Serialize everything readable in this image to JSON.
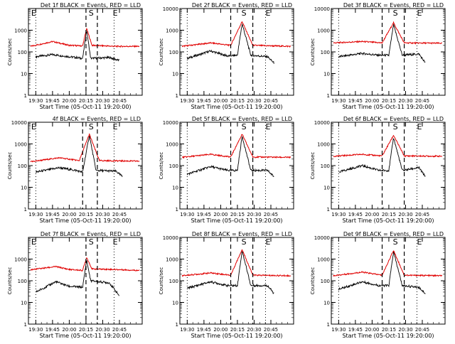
{
  "colors": {
    "events": "#000000",
    "lld": "#e00000",
    "axis": "#000000"
  },
  "chart_data": [
    {
      "type": "line",
      "title": "Det 1f BLACK = Events, RED = LLD",
      "xlabel": "Start Time (05-Oct-11 19:20:00)",
      "ylabel": "Counts/sec",
      "yscale": "log",
      "ylim": [
        1,
        10000
      ],
      "xlim": [
        19.39,
        21.09
      ],
      "xticks": [
        "19:30",
        "19:45",
        "20:00",
        "20:15",
        "20:30",
        "20:45"
      ],
      "yticks": [
        "1",
        "10",
        "100",
        "1000"
      ],
      "markers": [
        {
          "label": "E",
          "x": 19.42
        },
        {
          "label": "S",
          "x": 20.28
        },
        {
          "label": "E",
          "x": 20.64
        }
      ],
      "dashed_lines": [
        20.25,
        20.42
      ],
      "dotted_lines": [
        19.5,
        20.67
      ],
      "series": [
        {
          "name": "Events",
          "values": [
            {
              "x": 19.5,
              "y": 60
            },
            {
              "x": 19.75,
              "y": 75
            },
            {
              "x": 20.0,
              "y": 60
            },
            {
              "x": 20.2,
              "y": 50
            },
            {
              "x": 20.26,
              "y": 1000
            },
            {
              "x": 20.32,
              "y": 50
            },
            {
              "x": 20.6,
              "y": 55
            },
            {
              "x": 20.75,
              "y": 40
            }
          ]
        },
        {
          "name": "LLD",
          "values": [
            {
              "x": 19.42,
              "y": 180
            },
            {
              "x": 19.75,
              "y": 300
            },
            {
              "x": 20.0,
              "y": 200
            },
            {
              "x": 20.2,
              "y": 190
            },
            {
              "x": 20.26,
              "y": 1200
            },
            {
              "x": 20.34,
              "y": 200
            },
            {
              "x": 20.7,
              "y": 180
            },
            {
              "x": 21.05,
              "y": 180
            }
          ]
        }
      ]
    },
    {
      "type": "line",
      "title": "Det 2f BLACK = Events, RED = LLD",
      "xlabel": "Start Time (05-Oct-11 19:20:00)",
      "ylabel": "Counts/sec",
      "yscale": "log",
      "ylim": [
        1,
        10000
      ],
      "xlim": [
        19.39,
        21.09
      ],
      "xticks": [
        "19:30",
        "19:45",
        "20:00",
        "20:15",
        "20:30",
        "20:45"
      ],
      "yticks": [
        "1",
        "10",
        "100",
        "1000",
        "10000"
      ],
      "markers": [
        {
          "label": "S",
          "x": 20.3
        },
        {
          "label": "E",
          "x": 20.66
        }
      ],
      "dashed_lines": [
        20.15,
        20.48
      ],
      "dotted_lines": [
        19.5,
        20.67
      ],
      "series": [
        {
          "name": "Events",
          "values": [
            {
              "x": 19.5,
              "y": 50
            },
            {
              "x": 19.85,
              "y": 110
            },
            {
              "x": 20.1,
              "y": 65
            },
            {
              "x": 20.25,
              "y": 70
            },
            {
              "x": 20.32,
              "y": 2000
            },
            {
              "x": 20.45,
              "y": 70
            },
            {
              "x": 20.7,
              "y": 60
            },
            {
              "x": 20.8,
              "y": 30
            }
          ]
        },
        {
          "name": "LLD",
          "values": [
            {
              "x": 19.42,
              "y": 180
            },
            {
              "x": 19.85,
              "y": 260
            },
            {
              "x": 20.15,
              "y": 200
            },
            {
              "x": 20.32,
              "y": 2500
            },
            {
              "x": 20.48,
              "y": 200
            },
            {
              "x": 21.05,
              "y": 180
            }
          ]
        }
      ]
    },
    {
      "type": "line",
      "title": "Det 3f BLACK = Events, RED = LLD",
      "xlabel": "Start Time (05-Oct-11 19:20:00)",
      "ylabel": "Counts/sec",
      "yscale": "log",
      "ylim": [
        1,
        10000
      ],
      "xlim": [
        19.39,
        21.09
      ],
      "xticks": [
        "19:30",
        "19:45",
        "20:00",
        "20:15",
        "20:30",
        "20:45"
      ],
      "yticks": [
        "1",
        "10",
        "100",
        "1000",
        "10000"
      ],
      "markers": [
        {
          "label": "S",
          "x": 20.3
        },
        {
          "label": "E",
          "x": 20.66
        }
      ],
      "dashed_lines": [
        20.15,
        20.48
      ],
      "dotted_lines": [
        19.5,
        20.67
      ],
      "series": [
        {
          "name": "Events",
          "values": [
            {
              "x": 19.5,
              "y": 60
            },
            {
              "x": 19.85,
              "y": 85
            },
            {
              "x": 20.1,
              "y": 70
            },
            {
              "x": 20.25,
              "y": 70
            },
            {
              "x": 20.32,
              "y": 1800
            },
            {
              "x": 20.45,
              "y": 70
            },
            {
              "x": 20.7,
              "y": 80
            },
            {
              "x": 20.8,
              "y": 30
            }
          ]
        },
        {
          "name": "LLD",
          "values": [
            {
              "x": 19.42,
              "y": 260
            },
            {
              "x": 19.85,
              "y": 300
            },
            {
              "x": 20.15,
              "y": 260
            },
            {
              "x": 20.32,
              "y": 2200
            },
            {
              "x": 20.48,
              "y": 260
            },
            {
              "x": 21.05,
              "y": 250
            }
          ]
        }
      ]
    },
    {
      "type": "line",
      "title": "4f BLACK = Events, RED = LLD",
      "xlabel": "Start Time (05-Oct-11 19:20:00)",
      "ylabel": "Counts/sec",
      "yscale": "log",
      "ylim": [
        1,
        10000
      ],
      "xlim": [
        19.39,
        21.09
      ],
      "xticks": [
        "19:30",
        "19:45",
        "20:00",
        "20:15",
        "20:30",
        "20:45"
      ],
      "yticks": [
        "1",
        "10",
        "100",
        "1000",
        "10000"
      ],
      "markers": [
        {
          "label": "E",
          "x": 19.42
        },
        {
          "label": "S",
          "x": 20.28
        },
        {
          "label": "E",
          "x": 20.64
        }
      ],
      "dashed_lines": [
        20.2,
        20.42
      ],
      "dotted_lines": [
        19.5,
        20.67
      ],
      "series": [
        {
          "name": "Events",
          "values": [
            {
              "x": 19.5,
              "y": 50
            },
            {
              "x": 19.85,
              "y": 80
            },
            {
              "x": 20.1,
              "y": 60
            },
            {
              "x": 20.2,
              "y": 50
            },
            {
              "x": 20.3,
              "y": 2500
            },
            {
              "x": 20.4,
              "y": 60
            },
            {
              "x": 20.7,
              "y": 55
            },
            {
              "x": 20.8,
              "y": 30
            }
          ]
        },
        {
          "name": "LLD",
          "values": [
            {
              "x": 19.42,
              "y": 150
            },
            {
              "x": 19.85,
              "y": 230
            },
            {
              "x": 20.15,
              "y": 170
            },
            {
              "x": 20.3,
              "y": 2800
            },
            {
              "x": 20.45,
              "y": 170
            },
            {
              "x": 21.05,
              "y": 160
            }
          ]
        }
      ]
    },
    {
      "type": "line",
      "title": "Det 5f BLACK = Events, RED = LLD",
      "xlabel": "Start Time (05-Oct-11 19:20:00)",
      "ylabel": "Counts/sec",
      "yscale": "log",
      "ylim": [
        1,
        10000
      ],
      "xlim": [
        19.39,
        21.09
      ],
      "xticks": [
        "19:30",
        "19:45",
        "20:00",
        "20:15",
        "20:30",
        "20:45"
      ],
      "yticks": [
        "1",
        "10",
        "100",
        "1000",
        "10000"
      ],
      "markers": [
        {
          "label": "S",
          "x": 20.3
        },
        {
          "label": "E",
          "x": 20.66
        }
      ],
      "dashed_lines": [
        20.15,
        20.48
      ],
      "dotted_lines": [
        19.5,
        20.67
      ],
      "series": [
        {
          "name": "Events",
          "values": [
            {
              "x": 19.5,
              "y": 40
            },
            {
              "x": 19.85,
              "y": 90
            },
            {
              "x": 20.1,
              "y": 60
            },
            {
              "x": 20.25,
              "y": 60
            },
            {
              "x": 20.32,
              "y": 2300
            },
            {
              "x": 20.45,
              "y": 60
            },
            {
              "x": 20.7,
              "y": 60
            },
            {
              "x": 20.8,
              "y": 30
            }
          ]
        },
        {
          "name": "LLD",
          "values": [
            {
              "x": 19.42,
              "y": 240
            },
            {
              "x": 19.85,
              "y": 330
            },
            {
              "x": 20.15,
              "y": 250
            },
            {
              "x": 20.32,
              "y": 2800
            },
            {
              "x": 20.48,
              "y": 250
            },
            {
              "x": 21.05,
              "y": 240
            }
          ]
        }
      ]
    },
    {
      "type": "line",
      "title": "Det 6f BLACK = Events, RED = LLD",
      "xlabel": "Start Time (05-Oct-11 19:20:00)",
      "ylabel": "Counts/sec",
      "yscale": "log",
      "ylim": [
        1,
        10000
      ],
      "xlim": [
        19.39,
        21.09
      ],
      "xticks": [
        "19:30",
        "19:45",
        "20:00",
        "20:15",
        "20:30",
        "20:45"
      ],
      "yticks": [
        "1",
        "10",
        "100",
        "1000",
        "10000"
      ],
      "markers": [
        {
          "label": "S",
          "x": 20.3
        },
        {
          "label": "E",
          "x": 20.66
        }
      ],
      "dashed_lines": [
        20.15,
        20.48
      ],
      "dotted_lines": [
        19.5,
        20.67
      ],
      "series": [
        {
          "name": "Events",
          "values": [
            {
              "x": 19.5,
              "y": 50
            },
            {
              "x": 19.85,
              "y": 100
            },
            {
              "x": 20.1,
              "y": 60
            },
            {
              "x": 20.25,
              "y": 60
            },
            {
              "x": 20.32,
              "y": 2000
            },
            {
              "x": 20.45,
              "y": 60
            },
            {
              "x": 20.7,
              "y": 80
            },
            {
              "x": 20.8,
              "y": 30
            }
          ]
        },
        {
          "name": "LLD",
          "values": [
            {
              "x": 19.42,
              "y": 270
            },
            {
              "x": 19.85,
              "y": 330
            },
            {
              "x": 20.15,
              "y": 280
            },
            {
              "x": 20.32,
              "y": 2500
            },
            {
              "x": 20.48,
              "y": 280
            },
            {
              "x": 21.05,
              "y": 270
            }
          ]
        }
      ]
    },
    {
      "type": "line",
      "title": "Det 7f BLACK = Events, RED = LLD",
      "xlabel": "Start Time (05-Oct-11 19:20:00)",
      "ylabel": "Counts/sec",
      "yscale": "log",
      "ylim": [
        1,
        10000
      ],
      "xlim": [
        19.39,
        21.09
      ],
      "xticks": [
        "19:30",
        "19:45",
        "20:00",
        "20:15",
        "20:30",
        "20:45"
      ],
      "yticks": [
        "1",
        "10",
        "100",
        "1000"
      ],
      "markers": [
        {
          "label": "E",
          "x": 19.42
        },
        {
          "label": "S",
          "x": 20.28
        },
        {
          "label": "E",
          "x": 20.64
        }
      ],
      "dashed_lines": [
        20.25,
        20.42
      ],
      "dotted_lines": [
        19.5,
        20.67
      ],
      "series": [
        {
          "name": "Events",
          "values": [
            {
              "x": 19.5,
              "y": 30
            },
            {
              "x": 19.8,
              "y": 90
            },
            {
              "x": 20.0,
              "y": 55
            },
            {
              "x": 20.2,
              "y": 50
            },
            {
              "x": 20.26,
              "y": 900
            },
            {
              "x": 20.32,
              "y": 100
            },
            {
              "x": 20.6,
              "y": 80
            },
            {
              "x": 20.75,
              "y": 20
            }
          ]
        },
        {
          "name": "LLD",
          "values": [
            {
              "x": 19.42,
              "y": 320
            },
            {
              "x": 19.8,
              "y": 450
            },
            {
              "x": 20.0,
              "y": 330
            },
            {
              "x": 20.2,
              "y": 300
            },
            {
              "x": 20.26,
              "y": 1200
            },
            {
              "x": 20.34,
              "y": 350
            },
            {
              "x": 20.7,
              "y": 330
            },
            {
              "x": 21.05,
              "y": 300
            }
          ]
        }
      ]
    },
    {
      "type": "line",
      "title": "Det 8f BLACK = Events, RED = LLD",
      "xlabel": "Start Time (05-Oct-11 19:20:00)",
      "ylabel": "Counts/sec",
      "yscale": "log",
      "ylim": [
        1,
        10000
      ],
      "xlim": [
        19.39,
        21.09
      ],
      "xticks": [
        "19:30",
        "19:45",
        "20:00",
        "20:15",
        "20:30",
        "20:45"
      ],
      "yticks": [
        "1",
        "10",
        "100",
        "1000",
        "10000"
      ],
      "markers": [
        {
          "label": "S",
          "x": 20.3
        },
        {
          "label": "E",
          "x": 20.66
        }
      ],
      "dashed_lines": [
        20.15,
        20.48
      ],
      "dotted_lines": [
        19.5,
        20.67
      ],
      "series": [
        {
          "name": "Events",
          "values": [
            {
              "x": 19.5,
              "y": 45
            },
            {
              "x": 19.85,
              "y": 90
            },
            {
              "x": 20.1,
              "y": 60
            },
            {
              "x": 20.25,
              "y": 60
            },
            {
              "x": 20.32,
              "y": 2500
            },
            {
              "x": 20.45,
              "y": 60
            },
            {
              "x": 20.7,
              "y": 60
            },
            {
              "x": 20.8,
              "y": 25
            }
          ]
        },
        {
          "name": "LLD",
          "values": [
            {
              "x": 19.42,
              "y": 170
            },
            {
              "x": 19.85,
              "y": 230
            },
            {
              "x": 20.15,
              "y": 180
            },
            {
              "x": 20.32,
              "y": 2800
            },
            {
              "x": 20.48,
              "y": 180
            },
            {
              "x": 21.05,
              "y": 170
            }
          ]
        }
      ]
    },
    {
      "type": "line",
      "title": "Det 9f BLACK = Events, RED = LLD",
      "xlabel": "Start Time (05-Oct-11 19:20:00)",
      "ylabel": "Counts/sec",
      "yscale": "log",
      "ylim": [
        1,
        10000
      ],
      "xlim": [
        19.39,
        21.09
      ],
      "xticks": [
        "19:30",
        "19:45",
        "20:00",
        "20:15",
        "20:30",
        "20:45"
      ],
      "yticks": [
        "1",
        "10",
        "100",
        "1000",
        "10000"
      ],
      "markers": [
        {
          "label": "S",
          "x": 20.3
        },
        {
          "label": "E",
          "x": 20.66
        }
      ],
      "dashed_lines": [
        20.15,
        20.48
      ],
      "dotted_lines": [
        19.5,
        20.67
      ],
      "series": [
        {
          "name": "Events",
          "values": [
            {
              "x": 19.5,
              "y": 40
            },
            {
              "x": 19.85,
              "y": 90
            },
            {
              "x": 20.1,
              "y": 60
            },
            {
              "x": 20.25,
              "y": 60
            },
            {
              "x": 20.32,
              "y": 2200
            },
            {
              "x": 20.45,
              "y": 60
            },
            {
              "x": 20.7,
              "y": 50
            },
            {
              "x": 20.8,
              "y": 25
            }
          ]
        },
        {
          "name": "LLD",
          "values": [
            {
              "x": 19.42,
              "y": 170
            },
            {
              "x": 19.85,
              "y": 250
            },
            {
              "x": 20.15,
              "y": 180
            },
            {
              "x": 20.32,
              "y": 2500
            },
            {
              "x": 20.48,
              "y": 180
            },
            {
              "x": 21.05,
              "y": 170
            }
          ]
        }
      ]
    }
  ]
}
